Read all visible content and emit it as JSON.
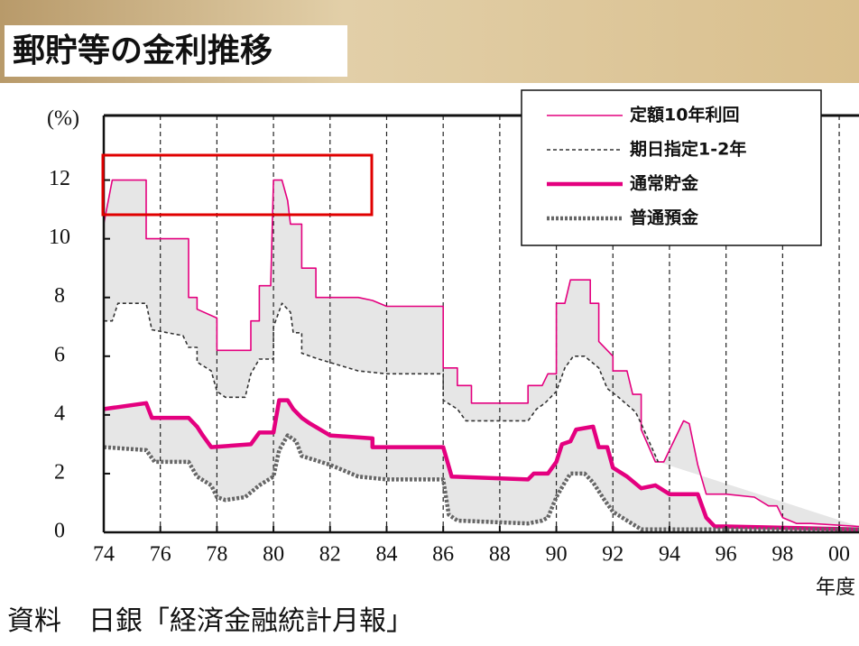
{
  "title": "郵貯等の金利推移",
  "source": "資料　日銀「経済金融統計月報」",
  "chart_data": {
    "type": "line",
    "y_unit_label": "(%)",
    "x_axis_label": "年度",
    "xlim": [
      74,
      100.7
    ],
    "xticks": [
      74,
      76,
      78,
      80,
      82,
      84,
      86,
      88,
      90,
      92,
      94,
      96,
      98,
      {
        "value": 100,
        "label": "00"
      }
    ],
    "ylim": [
      0,
      14.2
    ],
    "yticks": [
      0,
      2,
      4,
      6,
      8,
      10,
      12
    ],
    "grid": "x",
    "legend": "upper right",
    "series": [
      {
        "name": "定額10年利回",
        "color": "#e4007f",
        "dash": "solid",
        "weight": "thin",
        "x": [
          74,
          74.3,
          75.5,
          75.5,
          77,
          77,
          77.3,
          77.3,
          78,
          78,
          79.2,
          79.2,
          79.5,
          79.5,
          79.9,
          80,
          80.3,
          80.5,
          80.6,
          81,
          81,
          81.5,
          81.5,
          83,
          83.5,
          84,
          86,
          86,
          86.5,
          86.5,
          87,
          87,
          89,
          89,
          89.5,
          89.7,
          90,
          90,
          90.3,
          90.5,
          91.2,
          91.2,
          91.5,
          91.5,
          92,
          92,
          92.5,
          92.7,
          93,
          93,
          93.5,
          93.8,
          94.2,
          94.5,
          94.7,
          95,
          95.3,
          96,
          97,
          97.5,
          97.8,
          98,
          98.5,
          99,
          100.7
        ],
        "values": [
          10.5,
          12,
          12,
          10,
          10,
          8,
          8,
          7.6,
          7.3,
          6.2,
          6.2,
          7.2,
          7.2,
          8.4,
          8.4,
          12,
          12,
          11.3,
          10.5,
          10.5,
          9,
          9,
          8,
          8,
          7.9,
          7.7,
          7.7,
          5.6,
          5.6,
          5,
          5,
          4.4,
          4.4,
          5,
          5,
          5.4,
          5.4,
          7.8,
          7.8,
          8.6,
          8.6,
          7.8,
          7.8,
          6.5,
          6,
          5.5,
          5.5,
          4.7,
          4.7,
          3.5,
          2.4,
          2.4,
          3.2,
          3.8,
          3.7,
          2.3,
          1.3,
          1.3,
          1.2,
          0.9,
          0.9,
          0.5,
          0.3,
          0.3,
          0.2
        ]
      },
      {
        "name": "期日指定1-2年",
        "color": "#333333",
        "dash": "dashed",
        "weight": "thin",
        "x": [
          74,
          74.3,
          74.5,
          75.5,
          75.7,
          76.8,
          77,
          77.3,
          77.3,
          77.8,
          78,
          78.3,
          79,
          79.2,
          79.5,
          80,
          80,
          80.3,
          80.6,
          80.7,
          81,
          81,
          81.6,
          83,
          84,
          86,
          86,
          86.5,
          86.8,
          89,
          89.3,
          89.6,
          90,
          90.3,
          90.6,
          91,
          91.5,
          91.8,
          92.2,
          92.8,
          93,
          93.6
        ],
        "values": [
          7.2,
          7.2,
          7.8,
          7.8,
          6.9,
          6.7,
          6.3,
          6.3,
          5.8,
          5.5,
          4.8,
          4.6,
          4.6,
          5.4,
          5.9,
          5.9,
          7,
          7.8,
          7.5,
          6.8,
          6.8,
          6.1,
          5.9,
          5.5,
          5.4,
          5.4,
          4.5,
          4.2,
          3.8,
          3.8,
          4.2,
          4.4,
          4.8,
          5.6,
          6,
          6,
          5.6,
          4.9,
          4.6,
          4.1,
          3.7,
          2.4
        ]
      },
      {
        "name": "通常貯金",
        "color": "#e4007f",
        "dash": "solid",
        "weight": "thick",
        "x": [
          74,
          75.5,
          75.7,
          77,
          77.3,
          77.5,
          77.8,
          79.2,
          79.5,
          80,
          80.2,
          80.5,
          80.7,
          81,
          81.3,
          82,
          83.5,
          83.5,
          86,
          86.3,
          89,
          89.2,
          89.7,
          90,
          90.2,
          90.5,
          90.7,
          91.3,
          91.5,
          91.8,
          92,
          92.5,
          93,
          93.5,
          94,
          95,
          95.3,
          95.6,
          96,
          100.7
        ],
        "values": [
          4.2,
          4.4,
          3.9,
          3.9,
          3.6,
          3.3,
          2.9,
          3,
          3.4,
          3.4,
          4.5,
          4.5,
          4.2,
          3.9,
          3.7,
          3.3,
          3.2,
          2.9,
          2.9,
          1.9,
          1.8,
          2,
          2,
          2.4,
          3,
          3.1,
          3.5,
          3.6,
          2.9,
          2.9,
          2.2,
          1.9,
          1.5,
          1.6,
          1.3,
          1.3,
          0.5,
          0.2,
          0.2,
          0.1
        ]
      },
      {
        "name": "普通預金",
        "color": "#666666",
        "dash": "dotted",
        "weight": "thick",
        "x": [
          74,
          75.5,
          75.8,
          77,
          77.3,
          77.8,
          78,
          78.3,
          79,
          79.5,
          80,
          80.2,
          80.5,
          80.8,
          81,
          82,
          83,
          84,
          86,
          86.2,
          86.5,
          89,
          89.5,
          89.7,
          90,
          90.3,
          90.5,
          91,
          91.3,
          91.7,
          92,
          92.5,
          93,
          95,
          96,
          100.7
        ],
        "values": [
          2.9,
          2.8,
          2.4,
          2.4,
          1.9,
          1.6,
          1.2,
          1.1,
          1.2,
          1.6,
          1.9,
          2.8,
          3.3,
          3.1,
          2.6,
          2.3,
          1.9,
          1.8,
          1.8,
          0.6,
          0.4,
          0.3,
          0.4,
          0.5,
          1.2,
          1.7,
          2,
          2,
          1.7,
          1.1,
          0.7,
          0.4,
          0.1,
          0.1,
          0.1,
          0.1
        ]
      }
    ]
  }
}
